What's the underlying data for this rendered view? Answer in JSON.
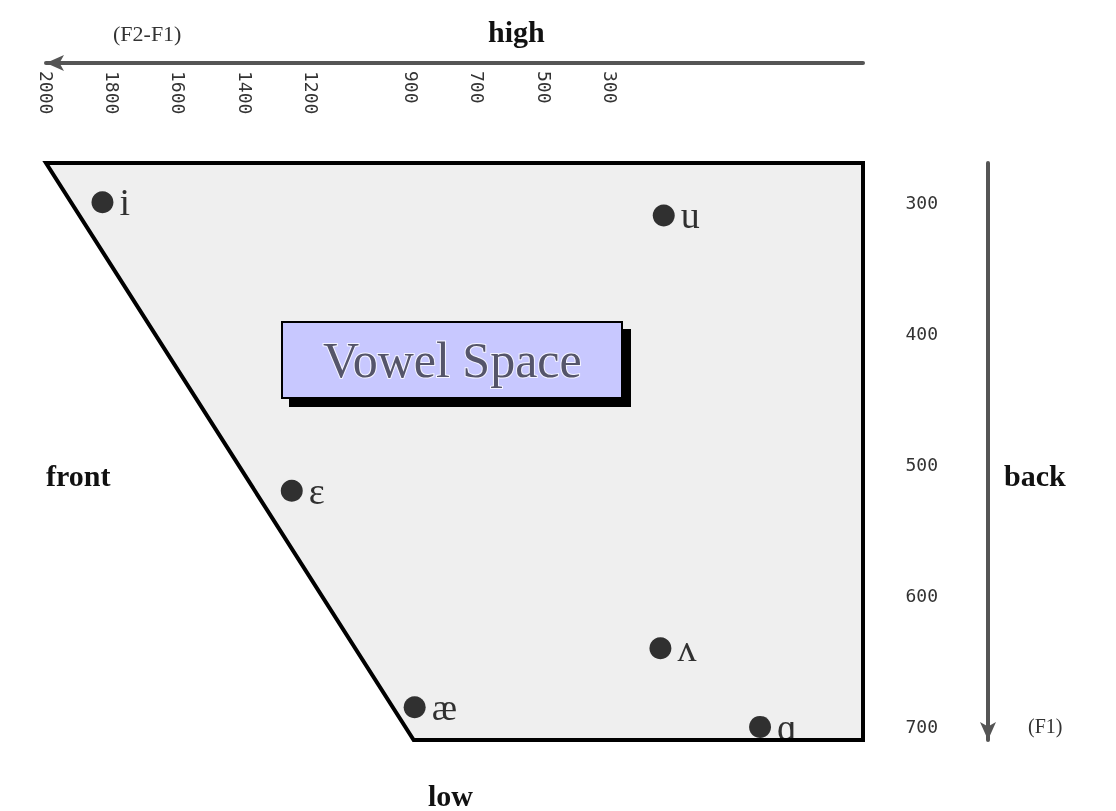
{
  "chart_data": {
    "type": "scatter",
    "title": "Vowel Space",
    "xlabel": "(F2-F1)",
    "ylabel": "(F1)",
    "annotations": [
      "high",
      "low",
      "front",
      "back"
    ],
    "x": [
      1830,
      140,
      1260,
      150,
      890,
      -150
    ],
    "values": [
      300,
      310,
      520,
      640,
      685,
      700
    ],
    "value_labels": [
      "i",
      "u",
      "ɛ",
      "ʌ",
      "æ",
      "ɑ"
    ],
    "color": "#000000",
    "marker": "circle",
    "grid": false,
    "xlim": [
      2000,
      -460
    ],
    "xticks": [
      2000,
      1800,
      1600,
      1400,
      1200,
      900,
      700,
      500,
      300
    ],
    "ylim": [
      710,
      270
    ],
    "yticks": [
      300,
      400,
      500,
      600,
      700
    ]
  }
}
